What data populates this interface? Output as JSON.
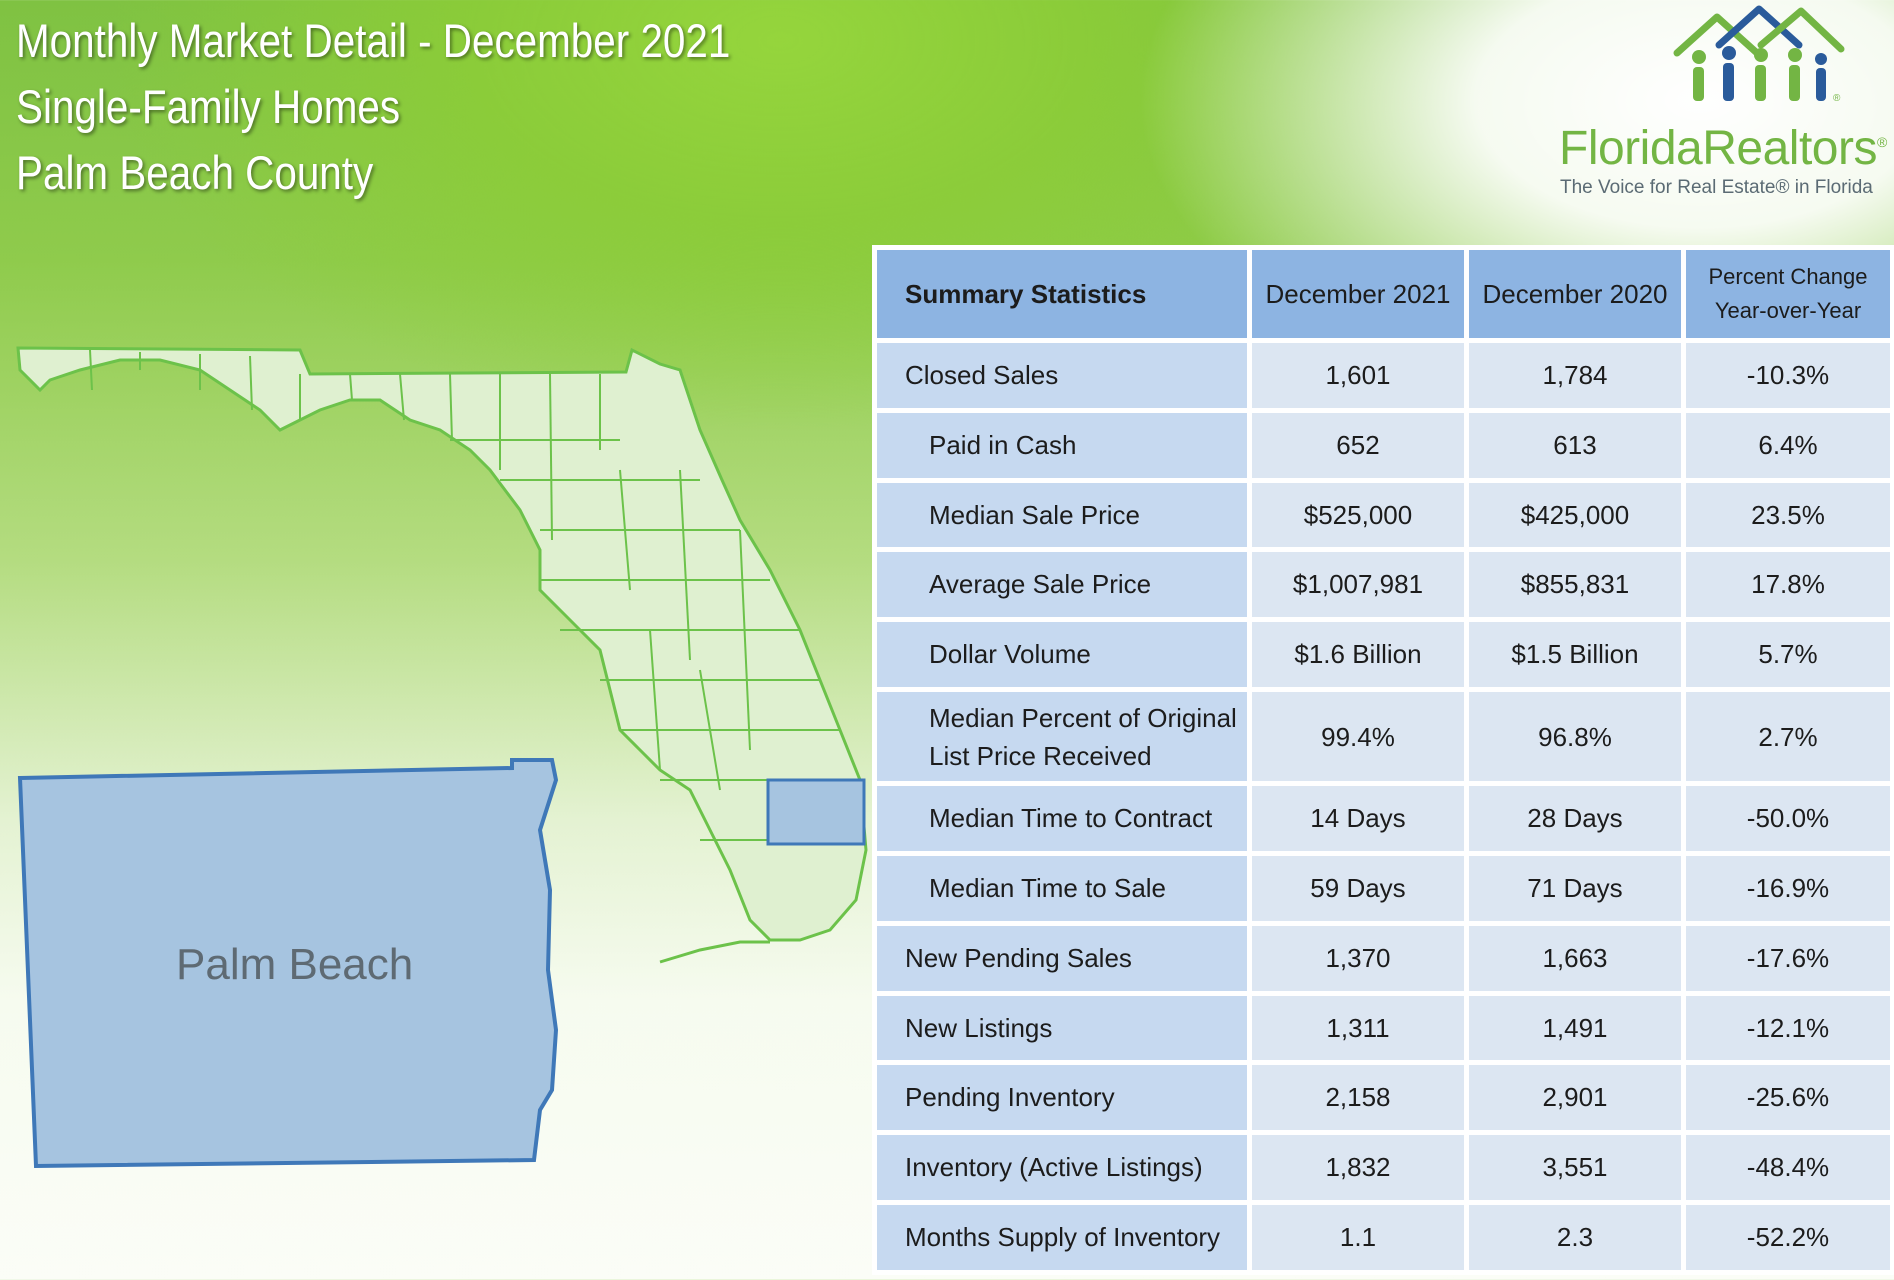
{
  "header": {
    "line1": "Monthly Market Detail - December 2021",
    "line2": "Single-Family Homes",
    "line3": "Palm Beach County"
  },
  "logo": {
    "name_part1": "Florida",
    "name_part2": "Realtors",
    "registered": "®",
    "tagline": "The Voice for Real Estate® in Florida",
    "brand_color": "#73b544",
    "accent_blue": "#2a5b9b"
  },
  "map": {
    "county_label": "Palm Beach",
    "state_fill": "#dff0d0",
    "state_stroke": "#6cc24a",
    "county_fill": "#a6c4e0",
    "county_stroke": "#3f78b8"
  },
  "table": {
    "headers": {
      "label": "Summary Statistics",
      "col1": "December 2021",
      "col2": "December 2020",
      "col3_line1": "Percent Change",
      "col3_line2": "Year-over-Year"
    },
    "rows": [
      {
        "label": "Closed Sales",
        "dec2021": "1,601",
        "dec2020": "1,784",
        "pct": "-10.3%"
      },
      {
        "label": "Paid in Cash",
        "dec2021": "652",
        "dec2020": "613",
        "pct": "6.4%"
      },
      {
        "label": "Median Sale Price",
        "dec2021": "$525,000",
        "dec2020": "$425,000",
        "pct": "23.5%"
      },
      {
        "label": "Average Sale Price",
        "dec2021": "$1,007,981",
        "dec2020": "$855,831",
        "pct": "17.8%"
      },
      {
        "label": "Dollar Volume",
        "dec2021": "$1.6 Billion",
        "dec2020": "$1.5 Billion",
        "pct": "5.7%"
      },
      {
        "label_line1": "Median Percent of Original",
        "label_line2": "List Price Received",
        "dec2021": "99.4%",
        "dec2020": "96.8%",
        "pct": "2.7%"
      },
      {
        "label": "Median Time to Contract",
        "dec2021": "14 Days",
        "dec2020": "28 Days",
        "pct": "-50.0%"
      },
      {
        "label": "Median Time to Sale",
        "dec2021": "59 Days",
        "dec2020": "71 Days",
        "pct": "-16.9%"
      },
      {
        "label": "New Pending Sales",
        "dec2021": "1,370",
        "dec2020": "1,663",
        "pct": "-17.6%"
      },
      {
        "label": "New Listings",
        "dec2021": "1,311",
        "dec2020": "1,491",
        "pct": "-12.1%"
      },
      {
        "label": "Pending Inventory",
        "dec2021": "2,158",
        "dec2020": "2,901",
        "pct": "-25.6%"
      },
      {
        "label": "Inventory (Active Listings)",
        "dec2021": "1,832",
        "dec2020": "3,551",
        "pct": "-48.4%"
      },
      {
        "label": "Months Supply of Inventory",
        "dec2021": "1.1",
        "dec2020": "2.3",
        "pct": "-52.2%"
      }
    ]
  }
}
